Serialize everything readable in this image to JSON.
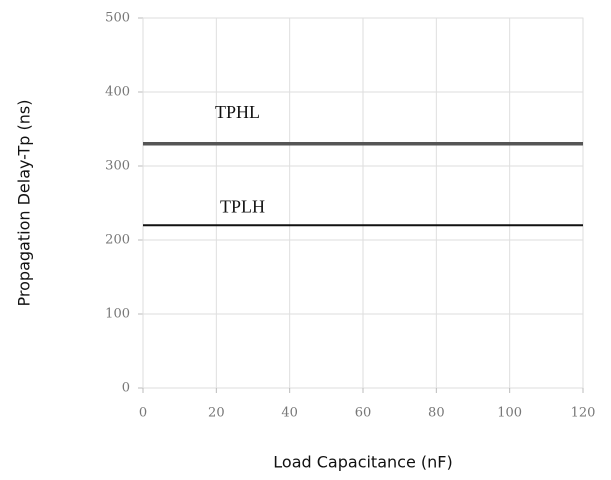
{
  "chart_data": {
    "type": "line",
    "x_label": "Load Capacitance (nF)",
    "y_label": "Propagation Delay-Tp (ns)",
    "series": [
      {
        "name": "TPHL",
        "color": "#555555",
        "x": [
          0,
          120
        ],
        "values": [
          330,
          330
        ]
      },
      {
        "name": "TPLH",
        "color": "#111111",
        "x": [
          0,
          120
        ],
        "values": [
          220,
          220
        ]
      }
    ],
    "xlim": [
      0,
      120
    ],
    "xticks": [
      0,
      20,
      40,
      60,
      80,
      100,
      120
    ],
    "ylim": [
      0,
      500
    ],
    "yticks": [
      0,
      100,
      200,
      300,
      400,
      500
    ],
    "grid": true
  }
}
